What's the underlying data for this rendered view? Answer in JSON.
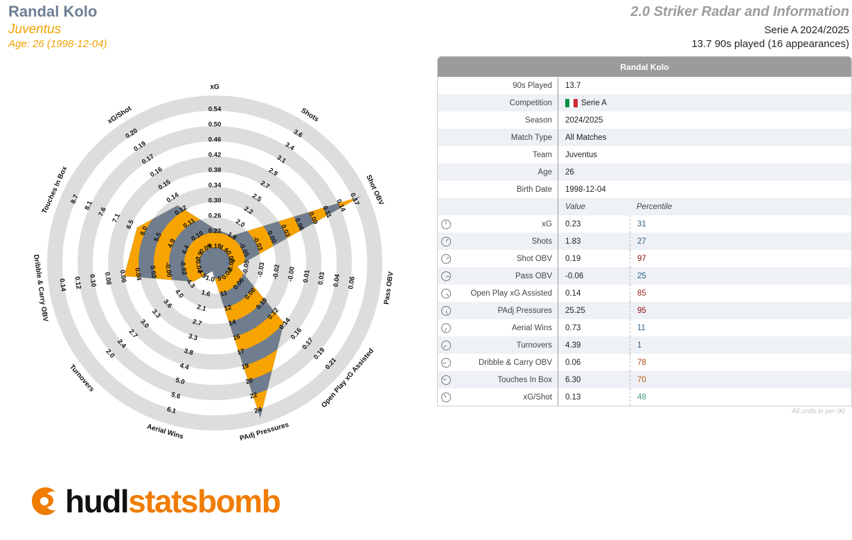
{
  "header": {
    "player": "Randal Kolo",
    "team": "Juventus",
    "age_line": "Age: 26 (1998-12-04)",
    "report_title": "2.0 Striker Radar and Information",
    "league_season": "Serie A 2024/2025",
    "played_line": "13.7 90s played (16 appearances)"
  },
  "table": {
    "title": "Randal Kolo",
    "info_rows": [
      {
        "label": "90s Played",
        "value": "13.7"
      },
      {
        "label": "Competition",
        "value": "Serie A"
      },
      {
        "label": "Season",
        "value": "2024/2025"
      },
      {
        "label": "Match Type",
        "value": "All Matches"
      },
      {
        "label": "Team",
        "value": "Juventus"
      },
      {
        "label": "Age",
        "value": "26"
      },
      {
        "label": "Birth Date",
        "value": "1998-12-04"
      }
    ],
    "value_header": "Value",
    "percentile_header": "Percentile",
    "metric_rows": [
      {
        "label": "xG",
        "value": "0.23",
        "percentile": "31",
        "color": "#2f5f83"
      },
      {
        "label": "Shots",
        "value": "1.83",
        "percentile": "27",
        "color": "#2f5f83"
      },
      {
        "label": "Shot OBV",
        "value": "0.19",
        "percentile": "97",
        "color": "#8b0b0b"
      },
      {
        "label": "Pass OBV",
        "value": "-0.06",
        "percentile": "25",
        "color": "#2f5f83"
      },
      {
        "label": "Open Play xG Assisted",
        "value": "0.14",
        "percentile": "85",
        "color": "#9b1f0e"
      },
      {
        "label": "PAdj Pressures",
        "value": "25.25",
        "percentile": "95",
        "color": "#8b0b0b"
      },
      {
        "label": "Aerial Wins",
        "value": "0.73",
        "percentile": "11",
        "color": "#2f5f83"
      },
      {
        "label": "Turnovers",
        "value": "4.39",
        "percentile": "1",
        "color": "#2f5f83"
      },
      {
        "label": "Dribble & Carry OBV",
        "value": "0.06",
        "percentile": "78",
        "color": "#b0430f"
      },
      {
        "label": "Touches In Box",
        "value": "6.30",
        "percentile": "70",
        "color": "#b85a14"
      },
      {
        "label": "xG/Shot",
        "value": "0.13",
        "percentile": "48",
        "color": "#4a9a7a"
      }
    ],
    "footnote": "All units in per-90",
    "flag_colors": [
      "#009246",
      "#ffffff",
      "#ce2b37"
    ]
  },
  "logo": {
    "hudl": "hudl",
    "statsbomb": "statsbomb"
  },
  "chart_data": {
    "type": "radar",
    "colors": {
      "fill_a": "#f7a300",
      "fill_b": "#6f7d8e",
      "ring": "#dddddd"
    },
    "axes": [
      {
        "name": "xG",
        "value": 0.23,
        "ticks": [
          "0.18",
          "0.22",
          "0.26",
          "0.30",
          "0.34",
          "0.38",
          "0.42",
          "0.46",
          "0.50",
          "0.54"
        ],
        "lower_is_better": false
      },
      {
        "name": "Shots",
        "value": 1.83,
        "ticks": [
          "1.6",
          "1.8",
          "2.0",
          "2.2",
          "2.5",
          "2.7",
          "2.9",
          "3.1",
          "3.4",
          "3.6"
        ],
        "lower_is_better": false
      },
      {
        "name": "Shot OBV",
        "value": 0.19,
        "ticks": [
          "-0.08",
          "-0.05",
          "-0.03",
          "0.00",
          "0.03",
          "0.06",
          "0.09",
          "0.11",
          "0.14",
          "0.17"
        ],
        "lower_is_better": false
      },
      {
        "name": "Pass OBV",
        "value": -0.06,
        "ticks": [
          "-0.07",
          "-0.05",
          "-0.03",
          "-0.02",
          "-0.00",
          "0.01",
          "0.03",
          "0.04",
          "0.06"
        ],
        "lower_is_better": false
      },
      {
        "name": "Open Play xG Assisted",
        "value": 0.14,
        "ticks": [
          "0.04",
          "0.06",
          "0.08",
          "0.10",
          "0.12",
          "0.14",
          "0.16",
          "0.17",
          "0.19",
          "0.21"
        ],
        "lower_is_better": false
      },
      {
        "name": "PAdj Pressures",
        "value": 25.25,
        "ticks": [
          "9",
          "11",
          "12",
          "14",
          "16",
          "17",
          "19",
          "20",
          "22",
          "24"
        ],
        "lower_is_better": false
      },
      {
        "name": "Aerial Wins",
        "value": 0.73,
        "ticks": [
          "1.0",
          "1.6",
          "2.1",
          "2.7",
          "3.3",
          "3.8",
          "4.4",
          "5.0",
          "5.6",
          "6.1"
        ],
        "lower_is_better": false
      },
      {
        "name": "Turnovers",
        "value": 4.39,
        "ticks": [
          "4.9",
          "4.3",
          "4.0",
          "3.6",
          "3.3",
          "3.0",
          "2.7",
          "2.4",
          "2.0"
        ],
        "lower_is_better": true
      },
      {
        "name": "Dribble & Carry OBV",
        "value": 0.06,
        "ticks": [
          "-0.04",
          "-0.02",
          "-0.00",
          "0.02",
          "0.04",
          "0.06",
          "0.08",
          "0.10",
          "0.12",
          "0.14"
        ],
        "lower_is_better": false
      },
      {
        "name": "Touches In Box",
        "value": 6.3,
        "ticks": [
          "3.9",
          "4.4",
          "4.9",
          "5.5",
          "6.0",
          "6.5",
          "7.1",
          "7.6",
          "8.1",
          "8.7"
        ],
        "lower_is_better": false
      },
      {
        "name": "xG/Shot",
        "value": 0.13,
        "ticks": [
          "0.09",
          "0.10",
          "0.11",
          "0.12",
          "0.14",
          "0.15",
          "0.16",
          "0.17",
          "0.19",
          "0.20"
        ],
        "lower_is_better": false
      }
    ]
  }
}
